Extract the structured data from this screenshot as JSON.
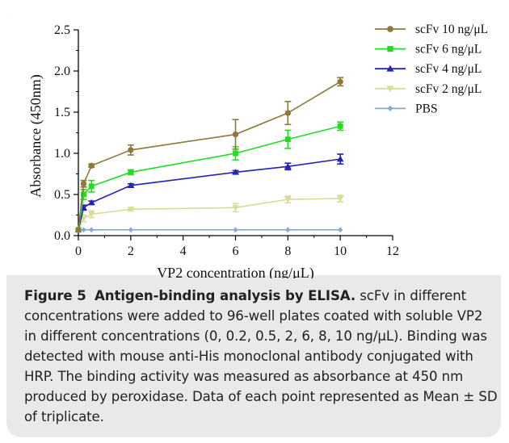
{
  "figure": {
    "label": "Figure 5",
    "title": "Antigen-binding analysis by ELISA.",
    "text": "scFv in different concentrations were added to 96-well plates coated with soluble VP2 in different concentrations (0, 0.2, 0.5, 2, 6, 8, 10 ng/μL). Binding was detected with mouse anti-His monoclonal antibody conjugated with HRP. The binding activity was measured as absorbance at 450 nm produced by peroxidase. Data of each point represented as Mean ± SD of triplicate."
  },
  "chart_data": {
    "type": "line",
    "title": "",
    "xlabel": "VP2 concentration (ng/μL)",
    "ylabel": "Absorbance (450nm)",
    "xlim": [
      0,
      12
    ],
    "ylim": [
      0,
      2.5
    ],
    "xticks": [
      "0",
      "2",
      "4",
      "6",
      "8",
      "10",
      "12"
    ],
    "yticks": [
      "0.0",
      "0.5",
      "1.0",
      "1.5",
      "2.0",
      "2.5"
    ],
    "x": [
      0,
      0.2,
      0.5,
      2,
      6,
      8,
      10
    ],
    "grid": false,
    "legend_position": "top-right",
    "series": [
      {
        "name": "scFv 10 ng/μL",
        "color": "#8b7a3a",
        "marker": "circle",
        "values": [
          0.07,
          0.63,
          0.85,
          1.04,
          1.23,
          1.49,
          1.87
        ],
        "errors": [
          0.01,
          0.04,
          0.02,
          0.06,
          0.18,
          0.14,
          0.05
        ]
      },
      {
        "name": "scFv 6 ng/μL",
        "color": "#22dd22",
        "marker": "square",
        "values": [
          0.07,
          0.5,
          0.6,
          0.77,
          1.0,
          1.17,
          1.33
        ],
        "errors": [
          0.01,
          0.06,
          0.07,
          0.03,
          0.08,
          0.11,
          0.05
        ]
      },
      {
        "name": "scFv 4 ng/μL",
        "color": "#2222bb",
        "marker": "triangle-up",
        "values": [
          0.07,
          0.34,
          0.4,
          0.61,
          0.77,
          0.84,
          0.93
        ],
        "errors": [
          0.01,
          0.03,
          0.02,
          0.02,
          0.02,
          0.04,
          0.06
        ]
      },
      {
        "name": "scFv 2 ng/μL",
        "color": "#d8dc98",
        "marker": "triangle-down",
        "values": [
          0.07,
          0.21,
          0.26,
          0.32,
          0.34,
          0.44,
          0.45
        ],
        "errors": [
          0.01,
          0.04,
          0.04,
          0.02,
          0.05,
          0.04,
          0.04
        ]
      },
      {
        "name": "PBS",
        "color": "#85a8d0",
        "marker": "diamond",
        "values": [
          0.07,
          0.07,
          0.07,
          0.07,
          0.07,
          0.07,
          0.07
        ],
        "errors": [
          0.005,
          0.005,
          0.005,
          0.005,
          0.005,
          0.005,
          0.005
        ]
      }
    ]
  }
}
